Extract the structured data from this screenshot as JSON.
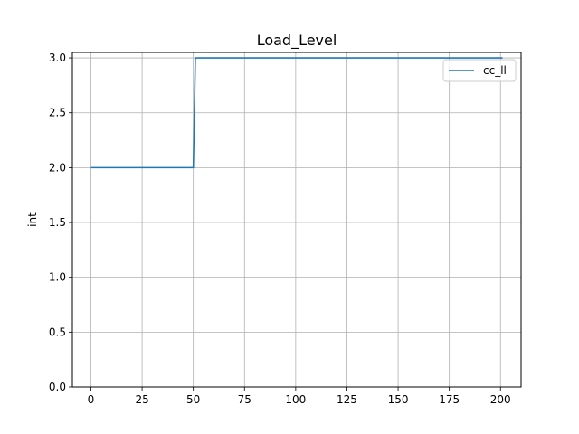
{
  "chart_data": {
    "type": "line",
    "title": "Load_Level",
    "xlabel": "",
    "ylabel": "int",
    "xlim": [
      -9.05,
      210.05
    ],
    "ylim": [
      0.0,
      3.05
    ],
    "xticks": [
      0,
      25,
      50,
      75,
      100,
      125,
      150,
      175,
      200
    ],
    "yticks": [
      0.0,
      0.5,
      1.0,
      1.5,
      2.0,
      2.5,
      3.0
    ],
    "ytick_labels": [
      "0.0",
      "0.5",
      "1.0",
      "1.5",
      "2.0",
      "2.5",
      "3.0"
    ],
    "grid": true,
    "legend_position": "top-right",
    "series": [
      {
        "name": "cc_ll",
        "color": "#1f77b4",
        "x": [
          0,
          50,
          51,
          201
        ],
        "y": [
          2,
          2,
          3,
          3
        ]
      }
    ]
  }
}
